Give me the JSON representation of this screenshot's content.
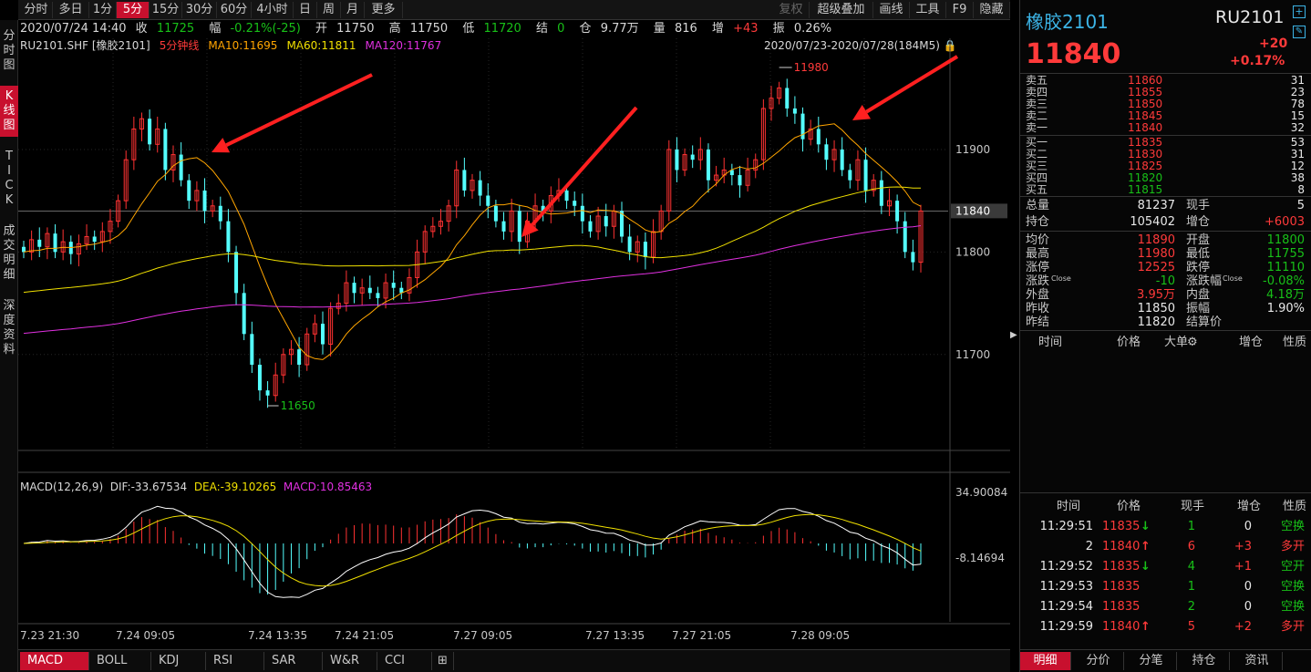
{
  "toolbar": {
    "items": [
      "分时",
      "多日",
      "1分",
      "5分",
      "15分",
      "30分",
      "60分",
      "4小时",
      "日",
      "周",
      "月",
      "更多"
    ],
    "active_index": 3,
    "right_items": [
      "复权",
      "超级叠加",
      "画线",
      "工具",
      "F9",
      "隐藏"
    ]
  },
  "leftnav": [
    "分时图",
    "K线图",
    "TICK",
    "成交明细",
    "深度资料"
  ],
  "infobar": {
    "date": "2020/07/24 14:40",
    "close_label": "收",
    "close": "11725",
    "amp_label": "幅",
    "amp": "-0.21%(-25)",
    "open_label": "开",
    "open": "11750",
    "high_label": "高",
    "high": "11750",
    "low_label": "低",
    "low": "11720",
    "settle_label": "结",
    "settle": "0",
    "oi_label": "仓",
    "oi": "9.77万",
    "vol_label": "量",
    "vol": "816",
    "inc_label": "增",
    "inc": "+43",
    "swing_label": "振",
    "swing": "0.26%"
  },
  "klabel": {
    "symbol": "RU2101.SHF [橡胶2101]",
    "period": "5分钟线",
    "ma10": "MA10:11695",
    "ma60": "MA60:11811",
    "ma120": "MA120:11767",
    "range": "2020/07/23-2020/07/28(184M5)"
  },
  "macd_label": {
    "name": "MACD(12,26,9)",
    "dif": "DIF:-33.67534",
    "dea": "DEA:-39.10265",
    "macd": "MACD:10.85463"
  },
  "chart_data": {
    "type": "candlestick",
    "price_axis": [
      "11900",
      "11840",
      "11800",
      "11700"
    ],
    "current_price": "11840",
    "max_label": "11980",
    "min_label": "11650",
    "macd_axis": [
      "34.90084",
      "-8.14694"
    ],
    "time_axis": [
      "7.23 21:30",
      "7.24 09:05",
      "7.24 13:35",
      "7.24 21:05",
      "7.27 09:05",
      "7.27 13:35",
      "7.27 21:05",
      "7.28 09:05"
    ],
    "closes": [
      11800,
      11812,
      11805,
      11818,
      11800,
      11810,
      11798,
      11808,
      11815,
      11810,
      11820,
      11830,
      11850,
      11890,
      11920,
      11930,
      11905,
      11920,
      11880,
      11895,
      11870,
      11850,
      11860,
      11840,
      11845,
      11830,
      11800,
      11760,
      11720,
      11690,
      11665,
      11660,
      11680,
      11700,
      11705,
      11690,
      11720,
      11730,
      11710,
      11745,
      11750,
      11770,
      11760,
      11765,
      11760,
      11755,
      11770,
      11765,
      11760,
      11775,
      11800,
      11820,
      11825,
      11830,
      11845,
      11880,
      11860,
      11870,
      11855,
      11845,
      11830,
      11820,
      11840,
      11810,
      11830,
      11845,
      11840,
      11855,
      11860,
      11850,
      11845,
      11830,
      11820,
      11835,
      11825,
      11840,
      11815,
      11800,
      11810,
      11795,
      11820,
      11840,
      11900,
      11880,
      11895,
      11890,
      11900,
      11870,
      11875,
      11880,
      11875,
      11865,
      11880,
      11890,
      11940,
      11950,
      11960,
      11940,
      11935,
      11910,
      11920,
      11905,
      11890,
      11900,
      11880,
      11870,
      11890,
      11860,
      11870,
      11845,
      11850,
      11830,
      11800,
      11790,
      11840
    ]
  },
  "right": {
    "title": "橡胶2101",
    "code": "RU2101",
    "price": "11840",
    "change": "+20",
    "change_pct": "+0.17%",
    "asks": [
      {
        "label": "卖五",
        "price": "11860",
        "vol": "31"
      },
      {
        "label": "卖四",
        "price": "11855",
        "vol": "23"
      },
      {
        "label": "卖三",
        "price": "11850",
        "vol": "78"
      },
      {
        "label": "卖二",
        "price": "11845",
        "vol": "15"
      },
      {
        "label": "卖一",
        "price": "11840",
        "vol": "32"
      }
    ],
    "bids": [
      {
        "label": "买一",
        "price": "11835",
        "vol": "53"
      },
      {
        "label": "买二",
        "price": "11830",
        "vol": "31"
      },
      {
        "label": "买三",
        "price": "11825",
        "vol": "12"
      },
      {
        "label": "买四",
        "price": "11820",
        "vol": "38"
      },
      {
        "label": "买五",
        "price": "11815",
        "vol": "8"
      }
    ],
    "stats1": [
      {
        "l1": "总量",
        "v1": "81237",
        "l2": "现手",
        "v2": "5",
        "c2": "w"
      },
      {
        "l1": "持仓",
        "v1": "105402",
        "l2": "增仓",
        "v2": "+6003",
        "c2": "r"
      }
    ],
    "stats2": [
      {
        "l1": "均价",
        "v1": "11890",
        "c1": "r",
        "l2": "开盘",
        "v2": "11800",
        "c2": "g"
      },
      {
        "l1": "最高",
        "v1": "11980",
        "c1": "r",
        "l2": "最低",
        "v2": "11755",
        "c2": "g"
      },
      {
        "l1": "涨停",
        "v1": "12525",
        "c1": "r",
        "l2": "跌停",
        "v2": "11110",
        "c2": "g"
      },
      {
        "l1": "涨跌",
        "v1": "-10",
        "c1": "g",
        "l2": "涨跌幅",
        "v2": "-0.08%",
        "c2": "g"
      },
      {
        "l1": "外盘",
        "v1": "3.95万",
        "c1": "r",
        "l2": "内盘",
        "v2": "4.18万",
        "c2": "g"
      },
      {
        "l1": "昨收",
        "v1": "11850",
        "c1": "w",
        "l2": "振幅",
        "v2": "1.90%",
        "c2": "w"
      },
      {
        "l1": "昨结",
        "v1": "11820",
        "c1": "w",
        "l2": "结算价",
        "v2": "",
        "c2": "w"
      }
    ],
    "close_sub": "Close",
    "trade_header": [
      "时间",
      "价格",
      "大单",
      "增仓",
      "性质"
    ],
    "ticks_header": [
      "时间",
      "价格",
      "现手",
      "增仓",
      "性质"
    ],
    "ticks": [
      {
        "t": "11:29:51",
        "p": "11835",
        "dir": "down",
        "v": "1",
        "vc": "g",
        "i": "0",
        "ic": "w",
        "n": "空换",
        "nc": "g"
      },
      {
        "t": "2",
        "p": "11840",
        "dir": "up",
        "v": "6",
        "vc": "r",
        "i": "+3",
        "ic": "r",
        "n": "多开",
        "nc": "r"
      },
      {
        "t": "11:29:52",
        "p": "11835",
        "dir": "down",
        "v": "4",
        "vc": "g",
        "i": "+1",
        "ic": "r",
        "n": "空开",
        "nc": "g"
      },
      {
        "t": "11:29:53",
        "p": "11835",
        "dir": "",
        "v": "1",
        "vc": "g",
        "i": "0",
        "ic": "w",
        "n": "空换",
        "nc": "g"
      },
      {
        "t": "11:29:54",
        "p": "11835",
        "dir": "",
        "v": "2",
        "vc": "g",
        "i": "0",
        "ic": "w",
        "n": "空换",
        "nc": "g"
      },
      {
        "t": "11:29:59",
        "p": "11840",
        "dir": "up",
        "v": "5",
        "vc": "r",
        "i": "+2",
        "ic": "r",
        "n": "多开",
        "nc": "r"
      }
    ],
    "tabs": [
      "明细",
      "分价",
      "分笔",
      "持仓",
      "资讯"
    ]
  },
  "bottom_tabs": [
    "MACD",
    "BOLL",
    "KDJ",
    "RSI",
    "SAR",
    "W&R",
    "CCI"
  ]
}
